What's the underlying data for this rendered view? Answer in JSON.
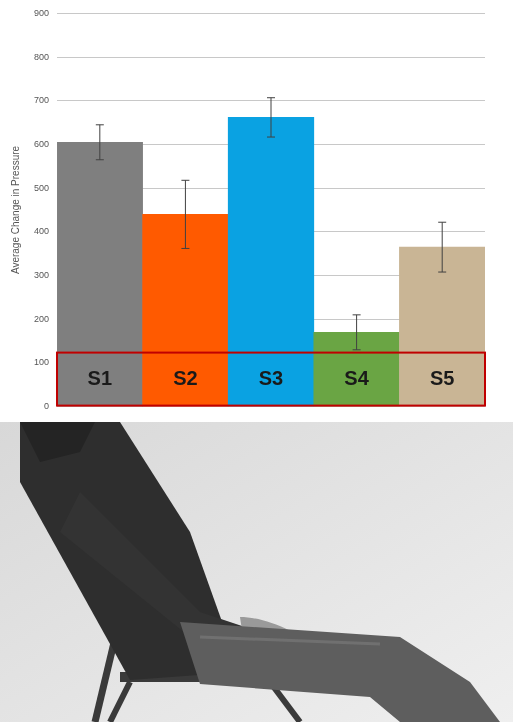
{
  "chart_data": {
    "type": "bar",
    "y_label": "Average Change in Pressure",
    "categories": [
      "S1",
      "S2",
      "S3",
      "S4",
      "S5"
    ],
    "values": [
      605,
      440,
      662,
      170,
      365
    ],
    "errors": [
      40,
      78,
      45,
      40,
      57
    ],
    "colors": [
      "#7f7f7f",
      "#ff5a00",
      "#0aa2e2",
      "#6aa544",
      "#c9b595"
    ],
    "ylim": [
      0,
      900
    ],
    "yticks": [
      0,
      100,
      200,
      300,
      400,
      500,
      600,
      700,
      800,
      900
    ],
    "grid": true,
    "tick_labels": "y"
  }
}
